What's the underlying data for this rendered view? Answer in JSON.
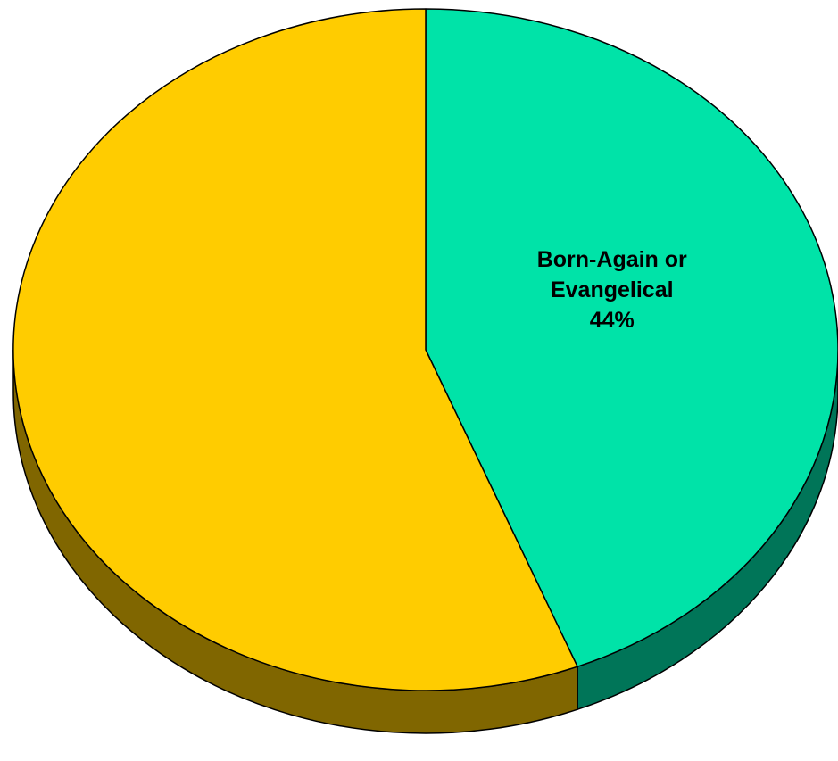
{
  "chart_data": {
    "type": "pie",
    "style": "3d",
    "slices": [
      {
        "label_lines": [
          "Born-Again or",
          "Evangelical"
        ],
        "value": 44,
        "value_label": "44%",
        "color": "#00E3A8",
        "side_color": "#007558"
      },
      {
        "label_lines": [],
        "value": 56,
        "value_label": "",
        "color": "#FFCC00",
        "side_color": "#806600"
      }
    ],
    "outline_color": "#000000"
  }
}
